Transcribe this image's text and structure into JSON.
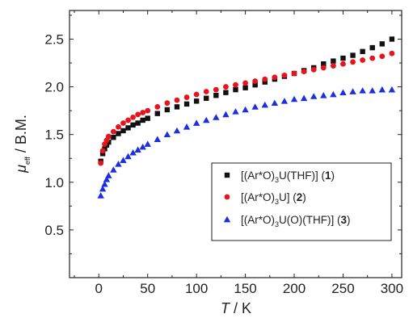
{
  "chart_data": {
    "type": "scatter",
    "title": "",
    "xlabel": {
      "main": "T",
      "unit": " / K"
    },
    "ylabel": {
      "main": "μ",
      "sub": "eff",
      "unit": " / B.M."
    },
    "xlim": [
      -30,
      310
    ],
    "ylim": [
      0,
      2.8
    ],
    "xticks": [
      0,
      50,
      100,
      150,
      200,
      250,
      300
    ],
    "yticks": [
      0.5,
      1.0,
      1.5,
      2.0,
      2.5
    ],
    "xtick_labels": [
      "0",
      "50",
      "100",
      "150",
      "200",
      "250",
      "300"
    ],
    "ytick_labels": [
      "0.5",
      "1.0",
      "1.5",
      "2.0",
      "2.5"
    ],
    "grid": false,
    "legend_position": "lower-right",
    "series": [
      {
        "name": "[(Ar*O)3U(THF)] (1)",
        "marker": "square",
        "color": "#111111",
        "x": [
          2,
          4,
          6,
          8,
          10,
          15,
          20,
          25,
          30,
          35,
          40,
          45,
          50,
          60,
          70,
          80,
          90,
          100,
          110,
          120,
          130,
          140,
          150,
          160,
          170,
          180,
          190,
          200,
          210,
          220,
          230,
          240,
          250,
          260,
          270,
          280,
          290,
          300
        ],
        "y": [
          1.22,
          1.3,
          1.35,
          1.39,
          1.42,
          1.47,
          1.51,
          1.54,
          1.57,
          1.6,
          1.62,
          1.65,
          1.67,
          1.72,
          1.76,
          1.79,
          1.82,
          1.85,
          1.88,
          1.91,
          1.94,
          1.97,
          1.99,
          2.02,
          2.05,
          2.08,
          2.11,
          2.14,
          2.17,
          2.2,
          2.24,
          2.27,
          2.3,
          2.33,
          2.37,
          2.41,
          2.45,
          2.5
        ]
      },
      {
        "name": "[(Ar*O)3U] (2)",
        "marker": "circle",
        "color": "#e8141b",
        "x": [
          2,
          4,
          6,
          8,
          10,
          15,
          20,
          25,
          30,
          35,
          40,
          45,
          50,
          60,
          70,
          80,
          90,
          100,
          110,
          120,
          130,
          140,
          150,
          160,
          170,
          180,
          190,
          200,
          210,
          220,
          230,
          240,
          250,
          260,
          270,
          280,
          290,
          300
        ],
        "y": [
          1.2,
          1.33,
          1.4,
          1.44,
          1.48,
          1.53,
          1.58,
          1.62,
          1.65,
          1.68,
          1.71,
          1.73,
          1.75,
          1.79,
          1.83,
          1.86,
          1.89,
          1.92,
          1.95,
          1.97,
          2.0,
          2.02,
          2.04,
          2.06,
          2.08,
          2.1,
          2.12,
          2.14,
          2.16,
          2.18,
          2.2,
          2.22,
          2.24,
          2.26,
          2.28,
          2.3,
          2.32,
          2.35
        ]
      },
      {
        "name": "[(Ar*O)3U(O)(THF)] (3)",
        "marker": "triangle",
        "color": "#1a2fe0",
        "x": [
          2,
          4,
          6,
          8,
          10,
          15,
          20,
          25,
          30,
          35,
          40,
          45,
          50,
          60,
          70,
          80,
          90,
          100,
          110,
          120,
          130,
          140,
          150,
          160,
          170,
          180,
          190,
          200,
          210,
          220,
          230,
          240,
          250,
          260,
          270,
          280,
          290,
          300
        ],
        "y": [
          0.86,
          0.93,
          0.98,
          1.03,
          1.07,
          1.13,
          1.19,
          1.23,
          1.27,
          1.31,
          1.34,
          1.37,
          1.4,
          1.45,
          1.5,
          1.54,
          1.58,
          1.62,
          1.65,
          1.68,
          1.71,
          1.74,
          1.76,
          1.79,
          1.81,
          1.83,
          1.85,
          1.87,
          1.88,
          1.9,
          1.91,
          1.92,
          1.94,
          1.95,
          1.96,
          1.96,
          1.97,
          1.97
        ]
      }
    ],
    "legend": [
      {
        "pre": "[(Ar*O)",
        "sub": "3",
        "mid": "U(THF)] (",
        "bold": "1",
        "post": ")"
      },
      {
        "pre": "[(Ar*O)",
        "sub": "3",
        "mid": "U] (",
        "bold": "2",
        "post": ")"
      },
      {
        "pre": "[(Ar*O)",
        "sub": "3",
        "mid": "U(O)(THF)] (",
        "bold": "3",
        "post": ")"
      }
    ]
  }
}
